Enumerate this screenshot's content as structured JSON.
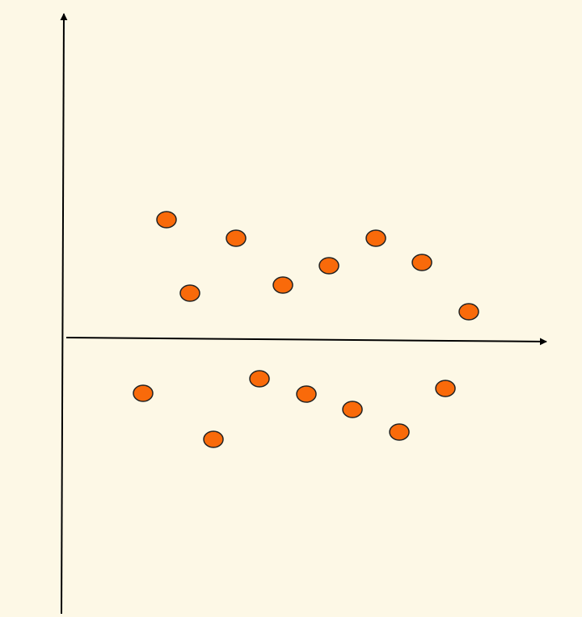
{
  "chart_data": {
    "type": "scatter",
    "x": [
      12.8,
      21.4,
      15.7,
      27.2,
      32.9,
      38.7,
      44.4,
      50.2,
      9.9,
      18.6,
      24.3,
      30.1,
      35.8,
      41.6,
      47.3
    ],
    "values": [
      14.8,
      12.5,
      5.7,
      6.7,
      9.1,
      12.5,
      9.5,
      3.4,
      -6.7,
      -12.4,
      -4.9,
      -6.8,
      -8.7,
      -11.5,
      -6.1
    ],
    "color": "#f96a0a",
    "xlim": [
      0,
      60
    ],
    "ylim": [
      -34,
      40.5
    ]
  }
}
